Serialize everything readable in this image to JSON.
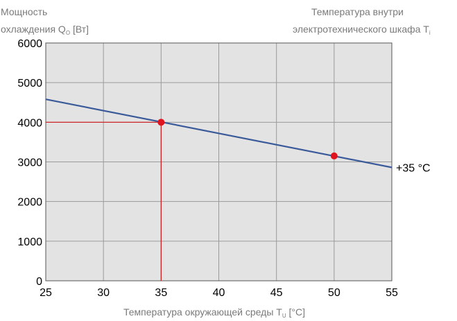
{
  "ylabel": {
    "line1": "Мощность",
    "line2_main": "охлаждения  Q",
    "line2_sub": "O",
    "line2_unit": " [Вт]"
  },
  "right_title": {
    "line1": "Температура внутри",
    "line2_main": "электротехнического шкафа   T",
    "line2_sub": "i"
  },
  "xlabel": {
    "main": "Температура окружающей среды T",
    "sub": "U",
    "unit": "   [°C]"
  },
  "chart_data": {
    "type": "line",
    "x": [
      25,
      55
    ],
    "series": [
      {
        "name": "+35 °C",
        "values": [
          4580,
          2860
        ]
      }
    ],
    "points": [
      {
        "x": 35,
        "y": 4000
      },
      {
        "x": 50,
        "y": 3150
      }
    ],
    "reference_lines": [
      {
        "from": [
          25,
          4000
        ],
        "to": [
          35,
          4000
        ]
      },
      {
        "from": [
          35,
          0
        ],
        "to": [
          35,
          4000
        ]
      }
    ],
    "xticks": [
      25,
      30,
      35,
      40,
      45,
      50,
      55
    ],
    "yticks": [
      0,
      1000,
      2000,
      3000,
      4000,
      5000,
      6000
    ],
    "xlim": [
      25,
      55
    ],
    "ylim": [
      0,
      6000
    ],
    "grid": true,
    "colors": {
      "line": "#3a5a9a",
      "points": "#e0141e",
      "reference": "#d01818",
      "plot_bg": "#e3e3e3",
      "grid": "#9a9a9a"
    }
  }
}
